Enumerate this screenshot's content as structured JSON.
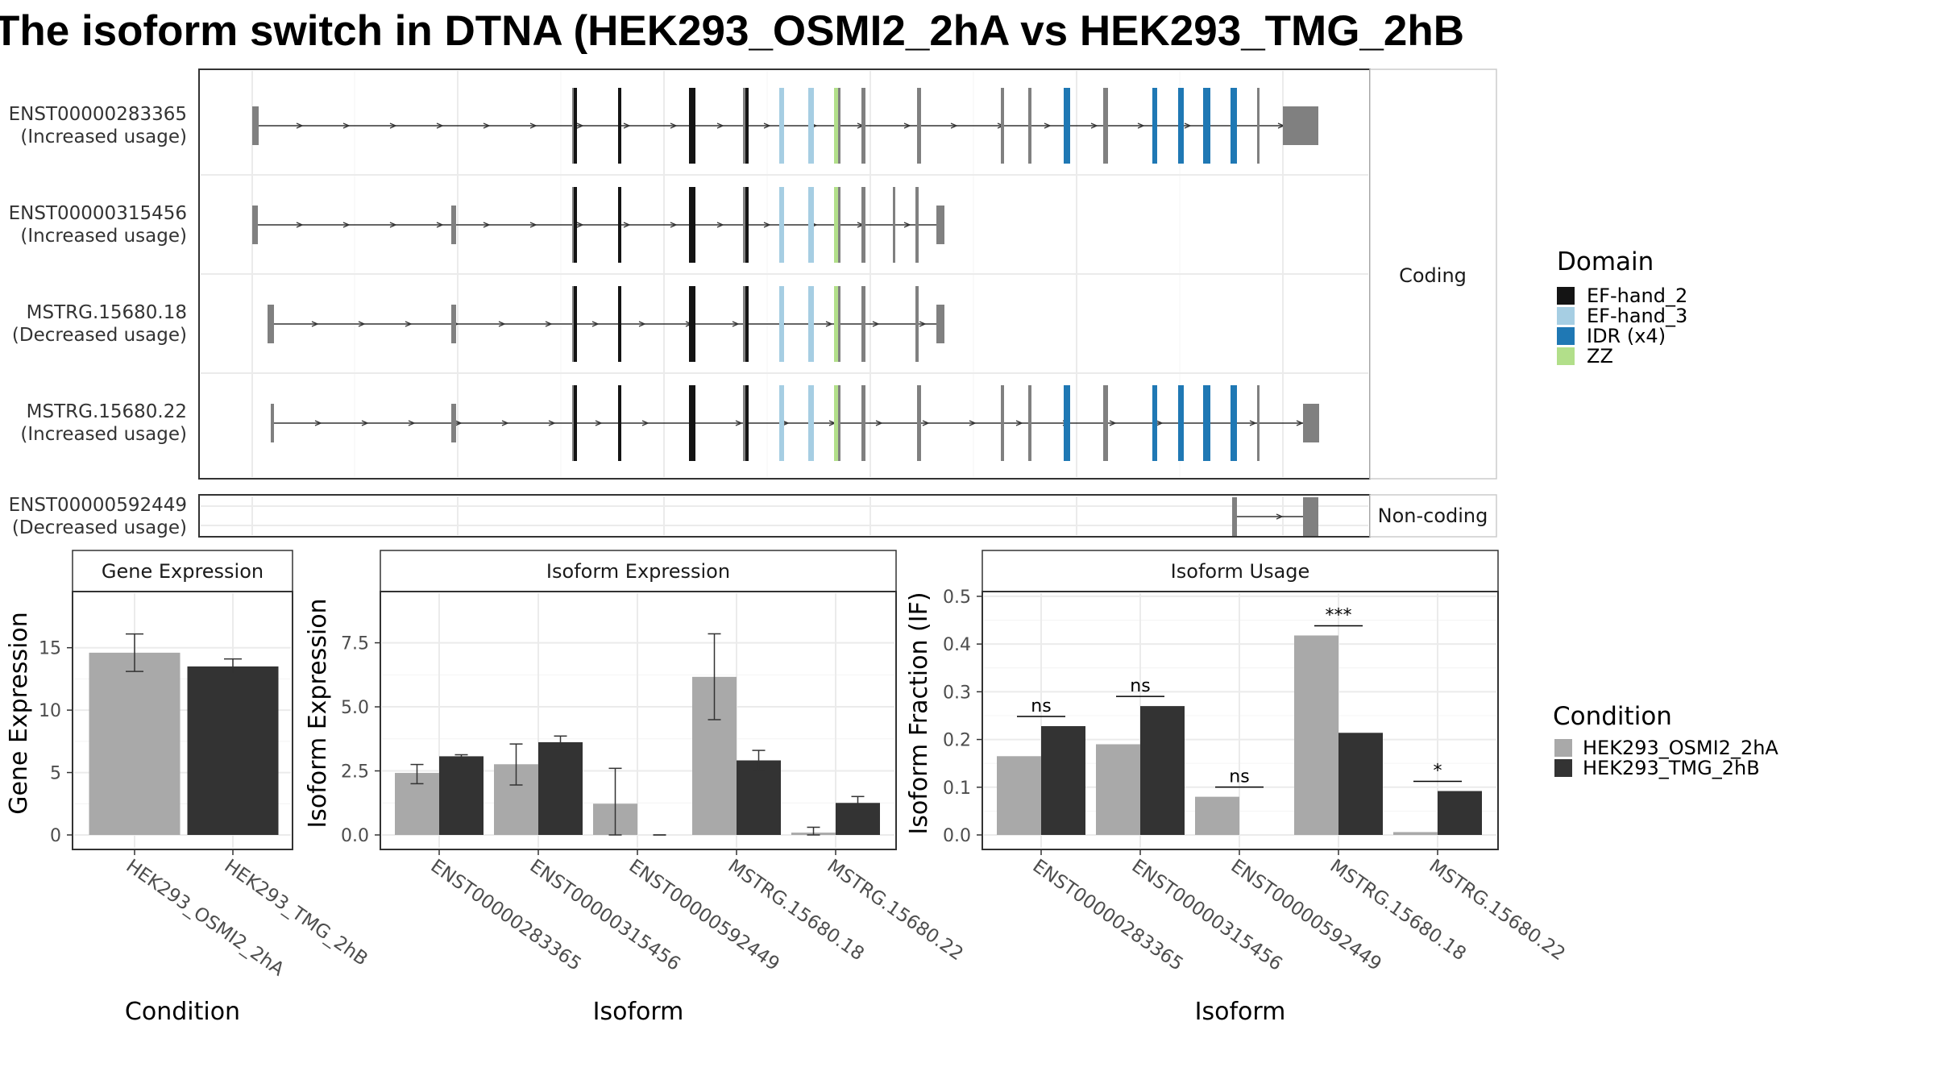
{
  "title": "The isoform switch in DTNA (HEK293_OSMI2_2hA vs HEK293_TMG_2hB",
  "colors": {
    "EF-hand_2": "#141414",
    "EF-hand_3": "#a6cee3",
    "IDR (x4)": "#1f78b4",
    "ZZ": "#b2df8a",
    "exon": "#808080",
    "HEK293_OSMI2_2hA": "#a9a9a9",
    "HEK293_TMG_2hB": "#333333"
  },
  "structure": {
    "facets": {
      "coding": "Coding",
      "noncoding": "Non-coding"
    },
    "isoforms": [
      {
        "id": "ENST00000283365",
        "note": "(Increased usage)",
        "group": "coding"
      },
      {
        "id": "ENST00000315456",
        "note": "(Increased usage)",
        "group": "coding"
      },
      {
        "id": "MSTRG.15680.18",
        "note": "(Decreased usage)",
        "group": "coding"
      },
      {
        "id": "MSTRG.15680.22",
        "note": "(Increased usage)",
        "group": "coding"
      },
      {
        "id": "ENST00000592449",
        "note": "(Decreased usage)",
        "group": "noncoding"
      }
    ],
    "legend": {
      "title": "Domain",
      "items": [
        {
          "label": "EF-hand_2",
          "color": "#141414"
        },
        {
          "label": "EF-hand_3",
          "color": "#a6cee3"
        },
        {
          "label": "IDR (x4)",
          "color": "#1f78b4"
        },
        {
          "label": "ZZ",
          "color": "#b2df8a"
        }
      ]
    }
  },
  "condition_legend": {
    "title": "Condition",
    "items": [
      {
        "label": "HEK293_OSMI2_2hA",
        "color": "#a9a9a9"
      },
      {
        "label": "HEK293_TMG_2hB",
        "color": "#333333"
      }
    ]
  },
  "chart_data": [
    {
      "type": "bar",
      "title": "Gene Expression",
      "xlabel": "Condition",
      "ylabel": "Gene Expression",
      "categories": [
        "HEK293_OSMI2_2hA",
        "HEK293_TMG_2hB"
      ],
      "values": [
        14.6,
        13.5
      ],
      "errors": [
        [
          13.1,
          16.1
        ],
        [
          12.9,
          14.1
        ]
      ],
      "yticks": [
        0,
        5,
        10,
        15
      ],
      "ylim": [
        0,
        19.5
      ]
    },
    {
      "type": "bar",
      "title": "Isoform Expression",
      "xlabel": "Isoform",
      "ylabel": "Isoform Expression",
      "categories": [
        "ENST00000283365",
        "ENST00000315456",
        "ENST00000592449",
        "MSTRG.15680.18",
        "MSTRG.15680.22"
      ],
      "series": [
        {
          "name": "HEK293_OSMI2_2hA",
          "values": [
            2.42,
            2.76,
            1.22,
            6.17,
            0.09
          ],
          "errors": [
            [
              2.0,
              2.75
            ],
            [
              1.95,
              3.55
            ],
            [
              0.0,
              2.6
            ],
            [
              4.5,
              7.85
            ],
            [
              0.0,
              0.3
            ]
          ]
        },
        {
          "name": "HEK293_TMG_2hB",
          "values": [
            3.07,
            3.62,
            0.0,
            2.91,
            1.25
          ],
          "errors": [
            [
              2.98,
              3.13
            ],
            [
              3.38,
              3.86
            ],
            [
              0.0,
              0.0
            ],
            [
              2.5,
              3.3
            ],
            [
              1.0,
              1.5
            ]
          ]
        }
      ],
      "yticks": [
        "0.0",
        "2.5",
        "5.0",
        "7.5"
      ],
      "ylim": [
        0,
        9.5
      ]
    },
    {
      "type": "bar",
      "title": "Isoform Usage",
      "xlabel": "Isoform",
      "ylabel": "Isoform Fraction (IF)",
      "categories": [
        "ENST00000283365",
        "ENST00000315456",
        "ENST00000592449",
        "MSTRG.15680.18",
        "MSTRG.15680.22"
      ],
      "series": [
        {
          "name": "HEK293_OSMI2_2hA",
          "values": [
            0.165,
            0.19,
            0.08,
            0.418,
            0.006
          ]
        },
        {
          "name": "HEK293_TMG_2hB",
          "values": [
            0.228,
            0.27,
            0.0,
            0.214,
            0.092
          ]
        }
      ],
      "significance": [
        "ns",
        "ns",
        "ns",
        "***",
        "*"
      ],
      "yticks": [
        "0.0",
        "0.1",
        "0.2",
        "0.3",
        "0.4",
        "0.5"
      ],
      "ylim": [
        0,
        0.51
      ]
    }
  ]
}
